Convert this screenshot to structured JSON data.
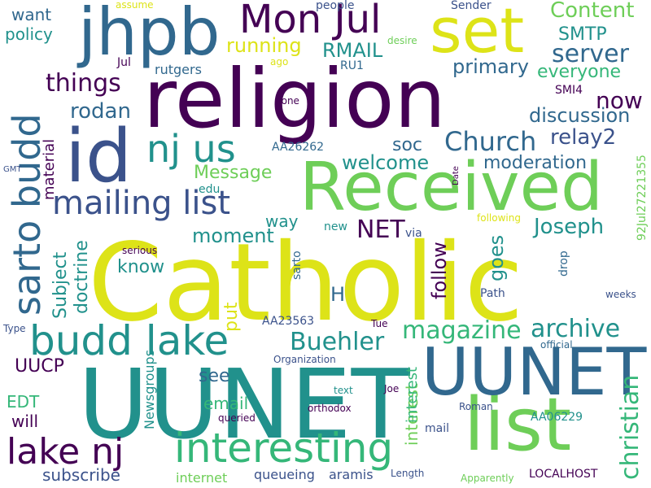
{
  "palette": {
    "dark_purple": "#440154",
    "indigo": "#3b528b",
    "blue": "#31688e",
    "teal": "#21918c",
    "green": "#35b779",
    "lime": "#6ece58",
    "yellow": "#dde318"
  },
  "words": [
    {
      "text": "Catholic"
    },
    {
      "text": "UUNET"
    },
    {
      "text": "religion"
    },
    {
      "text": "Received"
    },
    {
      "text": "list"
    },
    {
      "text": "id"
    },
    {
      "text": "jhpb"
    },
    {
      "text": "set"
    },
    {
      "text": "UUNET"
    },
    {
      "text": "Mon Jul"
    },
    {
      "text": "sarto budd"
    },
    {
      "text": "budd lake"
    },
    {
      "text": "lake nj"
    },
    {
      "text": "interesting"
    },
    {
      "text": "mailing list"
    },
    {
      "text": "nj us"
    },
    {
      "text": "magazine"
    },
    {
      "text": "archive"
    },
    {
      "text": "Buehler"
    },
    {
      "text": "christian"
    },
    {
      "text": "Church"
    },
    {
      "text": "things"
    },
    {
      "text": "server"
    },
    {
      "text": "Content"
    },
    {
      "text": "SMTP"
    },
    {
      "text": "running"
    },
    {
      "text": "RMAIL"
    },
    {
      "text": "primary"
    },
    {
      "text": "everyone"
    },
    {
      "text": "now"
    },
    {
      "text": "discussion"
    },
    {
      "text": "relay2"
    },
    {
      "text": "moderation"
    },
    {
      "text": "Joseph"
    },
    {
      "text": "rodan"
    },
    {
      "text": "soc"
    },
    {
      "text": "welcome"
    },
    {
      "text": "Message"
    },
    {
      "text": "NET"
    },
    {
      "text": "moment"
    },
    {
      "text": "follow"
    },
    {
      "text": "goes"
    },
    {
      "text": "know"
    },
    {
      "text": "Subject"
    },
    {
      "text": "doctrine"
    },
    {
      "text": "material"
    },
    {
      "text": "way"
    },
    {
      "text": "H"
    },
    {
      "text": "put"
    },
    {
      "text": "see"
    },
    {
      "text": "UUCP"
    },
    {
      "text": "EDT"
    },
    {
      "text": "will"
    },
    {
      "text": "email"
    },
    {
      "text": "interest"
    },
    {
      "text": "subscribe"
    },
    {
      "text": "Newsgroups"
    },
    {
      "text": "queueing"
    },
    {
      "text": "aramis"
    },
    {
      "text": "internet"
    },
    {
      "text": "LOCALHOST"
    },
    {
      "text": "want"
    },
    {
      "text": "policy"
    },
    {
      "text": "assume"
    },
    {
      "text": "people"
    },
    {
      "text": "Sender"
    },
    {
      "text": "desire"
    },
    {
      "text": "RU1"
    },
    {
      "text": "Jul"
    },
    {
      "text": "ago"
    },
    {
      "text": "rutgers"
    },
    {
      "text": "SMI4"
    },
    {
      "text": "AA26262"
    },
    {
      "text": "none"
    },
    {
      "text": "92Jul27221355"
    },
    {
      "text": "Date"
    },
    {
      "text": "GMT"
    },
    {
      "text": "edu"
    },
    {
      "text": "new"
    },
    {
      "text": "via"
    },
    {
      "text": "following"
    },
    {
      "text": "drop"
    },
    {
      "text": "serious"
    },
    {
      "text": "sarto"
    },
    {
      "text": "Path"
    },
    {
      "text": "weeks"
    },
    {
      "text": "AA23563"
    },
    {
      "text": "Tue"
    },
    {
      "text": "Type"
    },
    {
      "text": "Organization"
    },
    {
      "text": "official"
    },
    {
      "text": "text"
    },
    {
      "text": "Joe"
    },
    {
      "text": "queried"
    },
    {
      "text": "orthodox"
    },
    {
      "text": "Roman"
    },
    {
      "text": "AA06229"
    },
    {
      "text": "mail"
    },
    {
      "text": "Length"
    },
    {
      "text": "Apparently"
    },
    {
      "text": "interest"
    }
  ]
}
